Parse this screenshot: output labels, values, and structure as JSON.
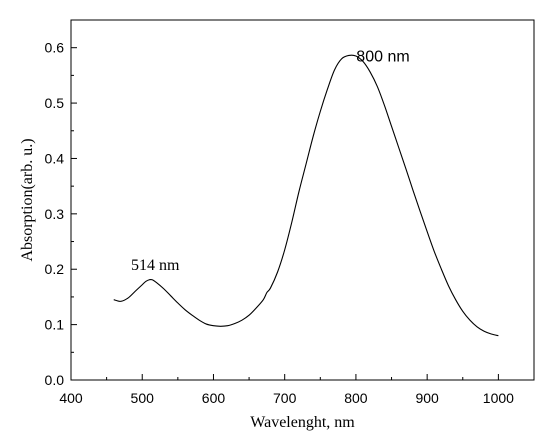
{
  "chart_data": {
    "type": "line",
    "title": "",
    "xlabel": "Wavelenght, nm",
    "ylabel": "Absorption(arb. u.)",
    "xlim": [
      400,
      1050
    ],
    "ylim": [
      0.0,
      0.65
    ],
    "xticks": [
      400,
      500,
      600,
      700,
      800,
      900,
      1000
    ],
    "xtick_labels": [
      "400",
      "500",
      "600",
      "700",
      "800",
      "900",
      "1000"
    ],
    "xminor_step": 50,
    "yticks": [
      0.0,
      0.1,
      0.2,
      0.3,
      0.4,
      0.5,
      0.6
    ],
    "ytick_labels": [
      "0.0",
      "0.1",
      "0.2",
      "0.3",
      "0.4",
      "0.5",
      "0.6"
    ],
    "yminor_step": 0.05,
    "grid": false,
    "legend": "none",
    "series": [
      {
        "x": [
          460,
          470,
          480,
          490,
          500,
          505,
          510,
          514,
          520,
          530,
          540,
          550,
          560,
          570,
          580,
          590,
          600,
          610,
          620,
          630,
          640,
          650,
          660,
          670,
          675,
          680,
          690,
          700,
          710,
          720,
          730,
          740,
          750,
          760,
          770,
          780,
          790,
          800,
          810,
          820,
          830,
          840,
          850,
          860,
          870,
          880,
          890,
          900,
          910,
          920,
          930,
          940,
          950,
          960,
          970,
          980,
          990,
          1000
        ],
        "values": [
          0.145,
          0.142,
          0.148,
          0.16,
          0.172,
          0.178,
          0.181,
          0.181,
          0.176,
          0.165,
          0.152,
          0.139,
          0.127,
          0.117,
          0.108,
          0.101,
          0.098,
          0.097,
          0.098,
          0.102,
          0.108,
          0.117,
          0.13,
          0.145,
          0.158,
          0.166,
          0.195,
          0.235,
          0.285,
          0.34,
          0.39,
          0.44,
          0.485,
          0.525,
          0.56,
          0.58,
          0.586,
          0.585,
          0.575,
          0.556,
          0.53,
          0.496,
          0.458,
          0.42,
          0.382,
          0.343,
          0.305,
          0.268,
          0.232,
          0.2,
          0.17,
          0.145,
          0.124,
          0.108,
          0.096,
          0.088,
          0.083,
          0.08
        ]
      }
    ],
    "annotations": [
      {
        "text": "800 nm",
        "x": 838,
        "y": 0.575
      },
      {
        "text": "514 nm",
        "x": 514,
        "y": 0.204
      }
    ]
  }
}
